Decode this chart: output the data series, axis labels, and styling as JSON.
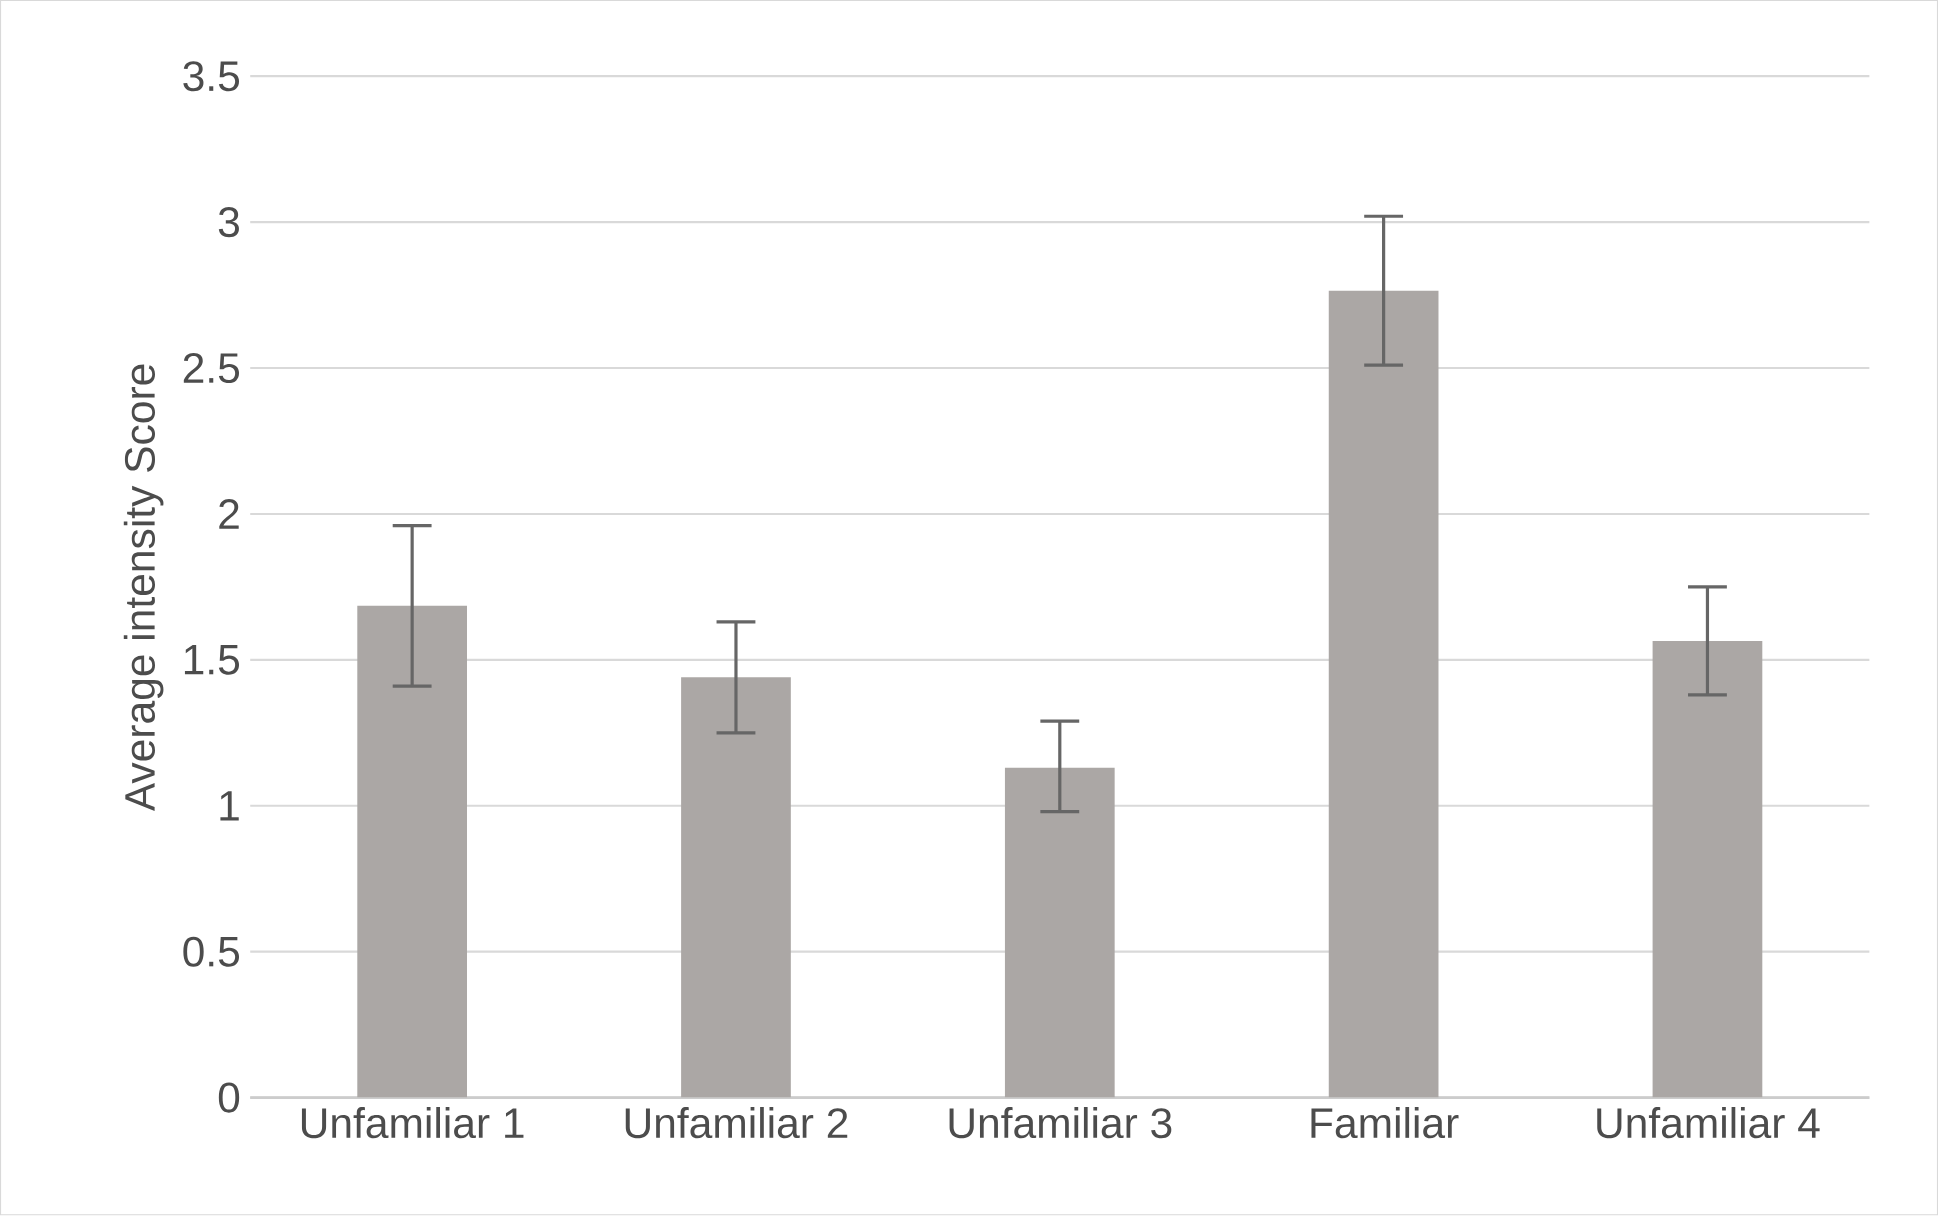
{
  "chart_data": {
    "type": "bar",
    "ylabel": "Average intensity Score",
    "categories": [
      "Unfamiliar 1",
      "Unfamiliar 2",
      "Unfamiliar 3",
      "Familiar",
      "Unfamiliar 4"
    ],
    "values": [
      1.685,
      1.44,
      1.13,
      2.765,
      1.565
    ],
    "errors": [
      [
        1.41,
        1.96
      ],
      [
        1.25,
        1.63
      ],
      [
        0.98,
        1.29
      ],
      [
        2.51,
        3.02
      ],
      [
        1.38,
        1.75
      ]
    ],
    "color": "#aba7a5",
    "ylim": [
      0,
      3.5
    ],
    "yticks": [
      0,
      0.5,
      1,
      1.5,
      2,
      2.5,
      3,
      3.5
    ],
    "grid": "y"
  }
}
